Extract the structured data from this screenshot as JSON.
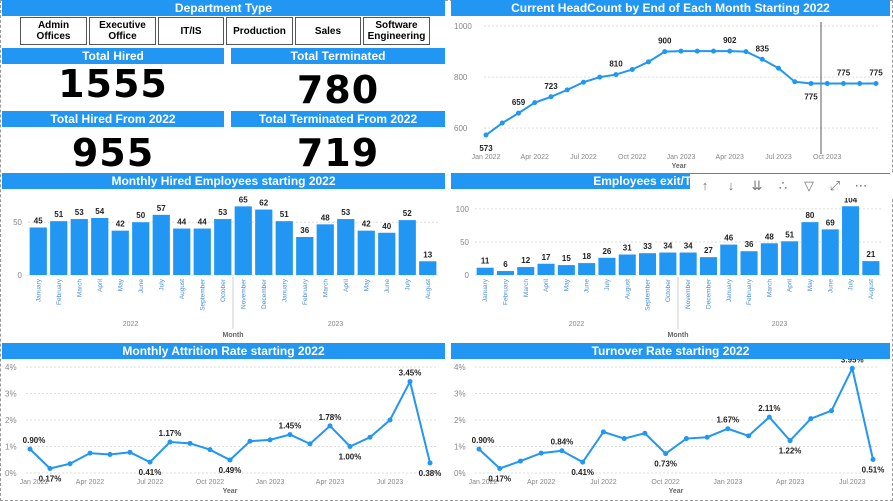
{
  "slicer": {
    "title": "Department Type",
    "buttons": [
      {
        "label": "Admin\nOffices"
      },
      {
        "label": "Executive\nOffice"
      },
      {
        "label": "IT/IS"
      },
      {
        "label": "Production"
      },
      {
        "label": "Sales"
      },
      {
        "label": "Software\nEngineering"
      }
    ]
  },
  "kpis": {
    "total_hired": {
      "title": "Total Hired",
      "value": "1555"
    },
    "total_terminated": {
      "title": "Total Terminated",
      "value": "780"
    },
    "hired_2022": {
      "title": "Total Hired From 2022",
      "value": "955"
    },
    "terminated_2022": {
      "title": "Total Terminated From 2022",
      "value": "719"
    }
  },
  "toolbar": {
    "icons": [
      "arrow-up-icon",
      "arrow-down-icon",
      "double-arrow-down-icon",
      "expand-hierarchy-icon",
      "filter-icon",
      "focus-mode-icon",
      "more-options-icon"
    ],
    "glyphs": [
      "↑",
      "↓",
      "⇊",
      "∴",
      "▽",
      "⤢",
      "⋯"
    ]
  },
  "colors": {
    "accent": "#2196f3"
  },
  "chart_data": [
    {
      "id": "headcount",
      "type": "line",
      "title": "Current HeadCount by End of Each Month Starting 2022",
      "xlabel": "Year",
      "x_ticks": [
        "Jan 2022",
        "Apr 2022",
        "Jul 2022",
        "Oct 2022",
        "Jan 2023",
        "Apr 2023",
        "Jul 2023",
        "Oct 2023"
      ],
      "ylim": [
        530,
        1020
      ],
      "y_ticks": [
        600,
        800,
        1000
      ],
      "values": [
        573,
        620,
        659,
        700,
        723,
        750,
        780,
        800,
        810,
        830,
        860,
        900,
        902,
        902,
        902,
        902,
        900,
        870,
        835,
        782,
        775,
        775,
        775,
        775,
        775
      ],
      "labels": {
        "0": "573",
        "2": "659",
        "4": "723",
        "8": "810",
        "11": "900",
        "15": "902",
        "17": "835",
        "20": "775",
        "22": "775",
        "24": "775"
      }
    },
    {
      "id": "hired",
      "type": "bar",
      "title": "Monthly Hired Employees starting 2022",
      "xlabel": "Month",
      "groups": [
        "2022",
        "2023"
      ],
      "categories": [
        "January",
        "February",
        "March",
        "April",
        "May",
        "June",
        "July",
        "August",
        "September",
        "October",
        "November",
        "December",
        "January",
        "February",
        "March",
        "April",
        "May",
        "June",
        "July",
        "August"
      ],
      "values": [
        45,
        51,
        53,
        54,
        42,
        50,
        57,
        44,
        44,
        53,
        65,
        62,
        51,
        36,
        48,
        53,
        42,
        40,
        52,
        13
      ],
      "y_ticks": [
        0,
        50
      ],
      "ylim": [
        0,
        72
      ]
    },
    {
      "id": "exits",
      "type": "bar",
      "title": "Employees exit/Terminated",
      "xlabel": "Month",
      "groups": [
        "2022",
        "2023"
      ],
      "categories": [
        "January",
        "February",
        "March",
        "April",
        "May",
        "June",
        "July",
        "August",
        "September",
        "October",
        "November",
        "December",
        "January",
        "February",
        "March",
        "April",
        "May",
        "June",
        "July",
        "August"
      ],
      "values": [
        11,
        6,
        12,
        17,
        15,
        18,
        26,
        31,
        33,
        34,
        34,
        27,
        46,
        36,
        48,
        51,
        80,
        69,
        104,
        21
      ],
      "y_ticks": [
        0,
        50,
        100
      ],
      "ylim": [
        0,
        115
      ]
    },
    {
      "id": "attrition",
      "type": "line",
      "title": "Monthly Attrition Rate starting 2022",
      "xlabel": "Year",
      "x_ticks": [
        "Jan 2022",
        "Apr 2022",
        "Jul 2022",
        "Oct 2022",
        "Jan 2023",
        "Apr 2023",
        "Jul 2023"
      ],
      "y_ticks": [
        "0%",
        "1%",
        "2%",
        "3%",
        "4%"
      ],
      "ylim": [
        0,
        4
      ],
      "values": [
        0.9,
        0.17,
        0.35,
        0.75,
        0.7,
        0.78,
        0.41,
        1.17,
        1.12,
        0.88,
        0.49,
        1.2,
        1.25,
        1.45,
        1.1,
        1.78,
        1.0,
        1.35,
        2.0,
        3.45,
        0.38
      ],
      "labels": {
        "0": "0.90%",
        "1": "0.17%",
        "6": "0.41%",
        "7": "1.17%",
        "10": "0.49%",
        "13": "1.45%",
        "15": "1.78%",
        "16": "1.00%",
        "19": "3.45%",
        "20": "0.38%"
      }
    },
    {
      "id": "turnover",
      "type": "line",
      "title": "Turnover Rate starting 2022",
      "xlabel": "Year",
      "x_ticks": [
        "Jan 2022",
        "Apr 2022",
        "Jul 2022",
        "Oct 2022",
        "Jan 2023",
        "Apr 2023",
        "Jul 2023"
      ],
      "y_ticks": [
        "0%",
        "1%",
        "2%",
        "3%",
        "4%"
      ],
      "ylim": [
        0,
        4
      ],
      "values": [
        0.9,
        0.17,
        0.45,
        0.75,
        0.84,
        0.41,
        1.55,
        1.3,
        1.5,
        0.73,
        1.3,
        1.35,
        1.67,
        1.4,
        2.11,
        1.22,
        2.05,
        2.35,
        3.95,
        0.51
      ],
      "labels": {
        "0": "0.90%",
        "1": "0.17%",
        "4": "0.84%",
        "5": "0.41%",
        "9": "0.73%",
        "12": "1.67%",
        "14": "2.11%",
        "15": "1.22%",
        "18": "3.95%",
        "19": "0.51%"
      }
    }
  ]
}
